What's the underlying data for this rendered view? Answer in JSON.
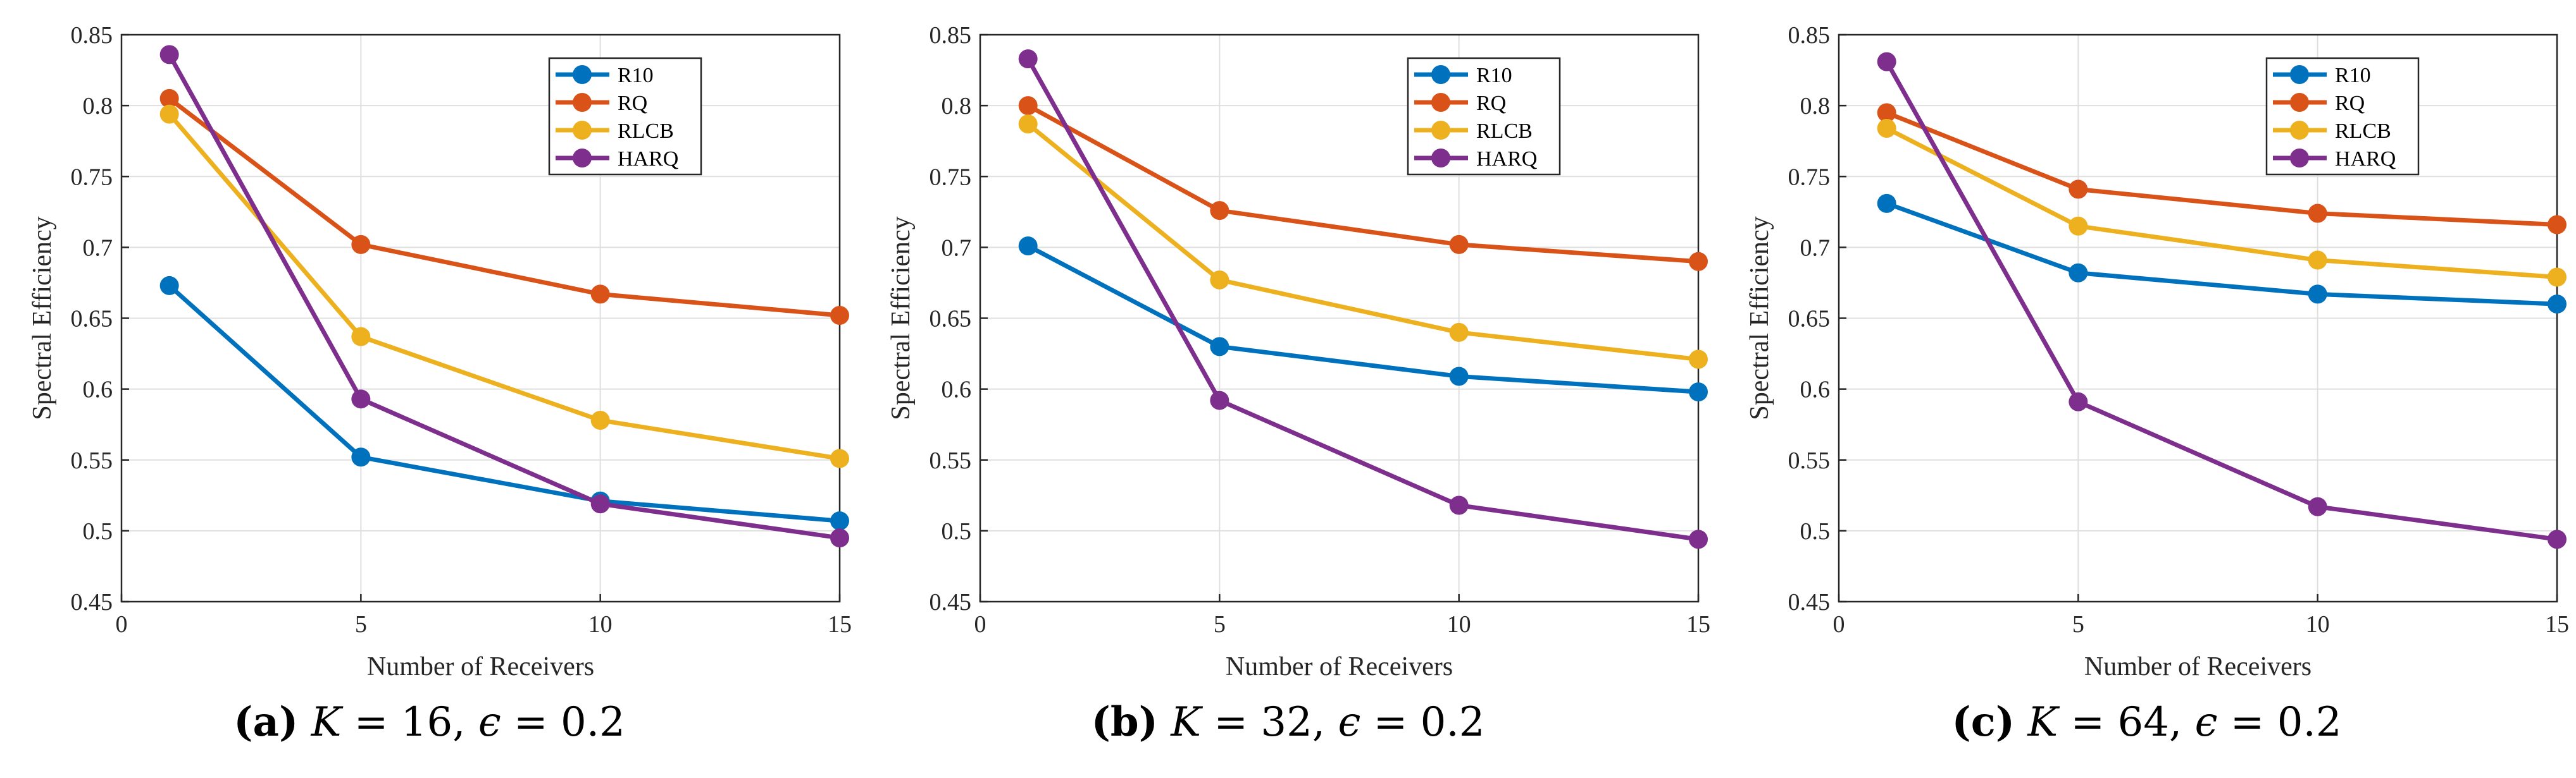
{
  "chart_data": [
    {
      "type": "line",
      "xlabel": "Number of Receivers",
      "ylabel": "Spectral Efficiency",
      "xlim": [
        0,
        15
      ],
      "ylim": [
        0.45,
        0.85
      ],
      "xticks": [
        "0",
        "5",
        "10",
        "15"
      ],
      "yticks": [
        "0.45",
        "0.5",
        "0.55",
        "0.6",
        "0.65",
        "0.7",
        "0.75",
        "0.8",
        "0.85"
      ],
      "grid": true,
      "legend_position": "top-right",
      "x": [
        1,
        5,
        10,
        15
      ],
      "series": [
        {
          "name": "R10",
          "color": "#0072BD",
          "values": [
            0.673,
            0.552,
            0.521,
            0.507
          ]
        },
        {
          "name": "RQ",
          "color": "#D95319",
          "values": [
            0.805,
            0.702,
            0.667,
            0.652
          ]
        },
        {
          "name": "RLCB",
          "color": "#EDB120",
          "values": [
            0.794,
            0.637,
            0.578,
            0.551
          ]
        },
        {
          "name": "HARQ",
          "color": "#7E2F8E",
          "values": [
            0.836,
            0.593,
            0.519,
            0.495
          ]
        }
      ],
      "caption": {
        "letter": "(a)",
        "var": "K",
        "eq": " = 16, ",
        "eps": "ϵ",
        "eq2": " = 0.2"
      }
    },
    {
      "type": "line",
      "xlabel": "Number of Receivers",
      "ylabel": "Spectral Efficiency",
      "xlim": [
        0,
        15
      ],
      "ylim": [
        0.45,
        0.85
      ],
      "xticks": [
        "0",
        "5",
        "10",
        "15"
      ],
      "yticks": [
        "0.45",
        "0.5",
        "0.55",
        "0.6",
        "0.65",
        "0.7",
        "0.75",
        "0.8",
        "0.85"
      ],
      "grid": true,
      "legend_position": "top-right",
      "x": [
        1,
        5,
        10,
        15
      ],
      "series": [
        {
          "name": "R10",
          "color": "#0072BD",
          "values": [
            0.701,
            0.63,
            0.609,
            0.598
          ]
        },
        {
          "name": "RQ",
          "color": "#D95319",
          "values": [
            0.8,
            0.726,
            0.702,
            0.69
          ]
        },
        {
          "name": "RLCB",
          "color": "#EDB120",
          "values": [
            0.787,
            0.677,
            0.64,
            0.621
          ]
        },
        {
          "name": "HARQ",
          "color": "#7E2F8E",
          "values": [
            0.833,
            0.592,
            0.518,
            0.494
          ]
        }
      ],
      "caption": {
        "letter": "(b)",
        "var": "K",
        "eq": " = 32, ",
        "eps": "ϵ",
        "eq2": " = 0.2"
      }
    },
    {
      "type": "line",
      "xlabel": "Number of Receivers",
      "ylabel": "Spectral Efficiency",
      "xlim": [
        0,
        15
      ],
      "ylim": [
        0.45,
        0.85
      ],
      "xticks": [
        "0",
        "5",
        "10",
        "15"
      ],
      "yticks": [
        "0.45",
        "0.5",
        "0.55",
        "0.6",
        "0.65",
        "0.7",
        "0.75",
        "0.8",
        "0.85"
      ],
      "grid": true,
      "legend_position": "top-right",
      "x": [
        1,
        5,
        10,
        15
      ],
      "series": [
        {
          "name": "R10",
          "color": "#0072BD",
          "values": [
            0.731,
            0.682,
            0.667,
            0.66
          ]
        },
        {
          "name": "RQ",
          "color": "#D95319",
          "values": [
            0.795,
            0.741,
            0.724,
            0.716
          ]
        },
        {
          "name": "RLCB",
          "color": "#EDB120",
          "values": [
            0.784,
            0.715,
            0.691,
            0.679
          ]
        },
        {
          "name": "HARQ",
          "color": "#7E2F8E",
          "values": [
            0.831,
            0.591,
            0.517,
            0.494
          ]
        }
      ],
      "caption": {
        "letter": "(c)",
        "var": "K",
        "eq": " = 64, ",
        "eps": "ϵ",
        "eq2": " = 0.2"
      }
    }
  ]
}
